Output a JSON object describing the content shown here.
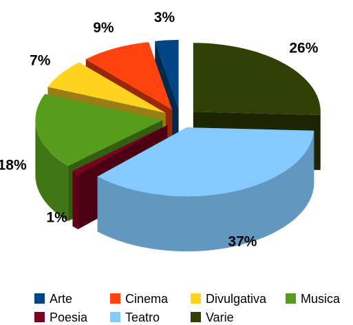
{
  "chart_data": {
    "type": "pie3d",
    "categories": [
      "Arte",
      "Cinema",
      "Divulgativa",
      "Musica",
      "Poesia",
      "Teatro",
      "Varie"
    ],
    "values": [
      3,
      9,
      7,
      18,
      1,
      37,
      26
    ],
    "value_labels": [
      "3%",
      "9%",
      "7%",
      "18%",
      "1%",
      "37%",
      "26%"
    ],
    "colors": [
      "#004586",
      "#ff420e",
      "#ffd320",
      "#579d1c",
      "#7e0021",
      "#83caff",
      "#314004"
    ],
    "legend": "bottom"
  }
}
